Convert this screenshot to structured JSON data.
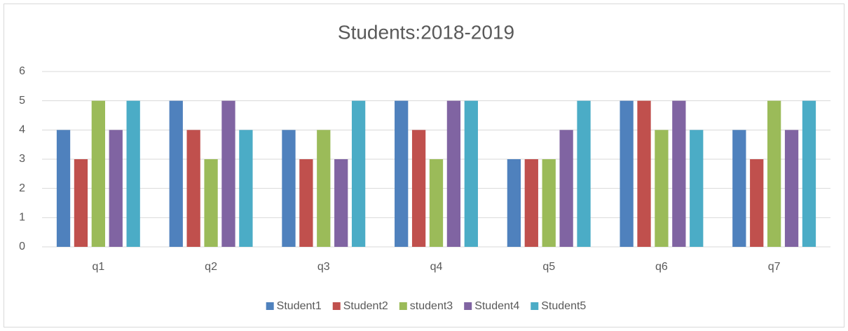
{
  "chart_data": {
    "type": "bar",
    "title": "Students:2018-2019",
    "categories": [
      "q1",
      "q2",
      "q3",
      "q4",
      "q5",
      "q6",
      "q7"
    ],
    "series": [
      {
        "name": "Student1",
        "color": "#4f81bd",
        "values": [
          4,
          5,
          4,
          5,
          3,
          5,
          4
        ]
      },
      {
        "name": "Student2",
        "color": "#c0504d",
        "values": [
          3,
          4,
          3,
          4,
          3,
          5,
          3
        ]
      },
      {
        "name": "student3",
        "color": "#9bbb59",
        "values": [
          5,
          3,
          4,
          3,
          3,
          4,
          5
        ]
      },
      {
        "name": "Student4",
        "color": "#8064a2",
        "values": [
          4,
          5,
          3,
          5,
          4,
          5,
          4
        ]
      },
      {
        "name": "Student5",
        "color": "#4bacc6",
        "values": [
          5,
          4,
          5,
          5,
          5,
          4,
          5
        ]
      }
    ],
    "ylim": [
      0,
      6
    ],
    "yticks": [
      0,
      1,
      2,
      3,
      4,
      5,
      6
    ],
    "grid": true,
    "legend": "bottom"
  }
}
